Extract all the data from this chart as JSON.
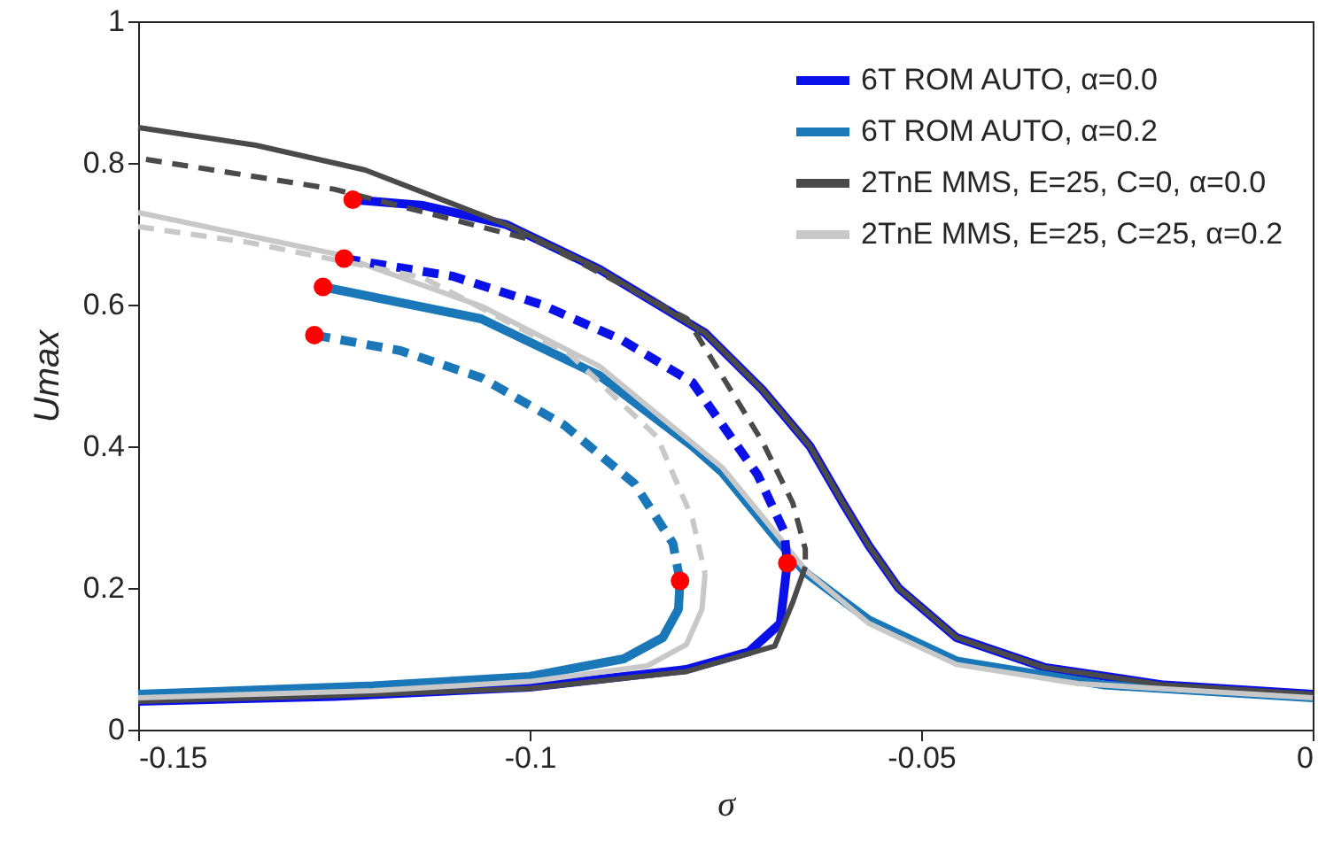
{
  "chart_data": {
    "type": "line",
    "xlabel": "σ",
    "ylabel": "Umax",
    "xlim": [
      -0.15,
      0
    ],
    "ylim": [
      0,
      1
    ],
    "xticks": [
      -0.15,
      -0.1,
      -0.05,
      0
    ],
    "yticks": [
      0,
      0.2,
      0.4,
      0.6,
      0.8,
      1
    ],
    "grid": false,
    "legend": "top right",
    "marker": "none",
    "series": [
      {
        "name": "6T ROM AUTO, α=0.0",
        "color": "#0a10e8",
        "line_style": "solid",
        "x": [
          -0.1226,
          -0.1136,
          -0.103,
          -0.0911,
          -0.0776,
          -0.0703,
          -0.0642,
          -0.06,
          -0.0567,
          -0.0529,
          -0.0455,
          -0.0343,
          -0.019,
          0
        ],
        "values": [
          0.748,
          0.74,
          0.713,
          0.65,
          0.56,
          0.48,
          0.4,
          0.32,
          0.26,
          0.2,
          0.13,
          0.088,
          0.063,
          0.05
        ]
      },
      {
        "name": "6T ROM AUTO, α=0.2",
        "color": "#1a78b8",
        "line_style": "solid",
        "x": [
          -0.1264,
          -0.1062,
          -0.0911,
          -0.0792,
          -0.0754,
          -0.068,
          -0.0648,
          -0.0567,
          -0.0455,
          -0.0266,
          0
        ],
        "values": [
          0.625,
          0.58,
          0.5,
          0.4,
          0.363,
          0.263,
          0.222,
          0.155,
          0.097,
          0.063,
          0.045
        ]
      },
      {
        "name": "2TnE MMS, E=25, C=0, α=0.0",
        "color": "#4a4a4a",
        "line_style": "solid",
        "x": [
          -0.15,
          -0.135,
          -0.121,
          -0.103,
          -0.0911,
          -0.0776,
          -0.0703,
          -0.0642,
          -0.06,
          -0.0567,
          -0.0529,
          -0.0455,
          -0.0343,
          -0.019,
          0
        ],
        "values": [
          0.85,
          0.825,
          0.79,
          0.713,
          0.65,
          0.56,
          0.48,
          0.4,
          0.32,
          0.26,
          0.2,
          0.13,
          0.088,
          0.063,
          0.05
        ]
      },
      {
        "name": "2TnE MMS, E=25, C=25, α=0.2",
        "color": "#c8c8c8",
        "line_style": "solid",
        "x": [
          -0.15,
          -0.125,
          -0.106,
          -0.0911,
          -0.0754,
          -0.068,
          -0.0648,
          -0.0567,
          -0.0455,
          -0.03,
          0
        ],
        "values": [
          0.73,
          0.672,
          0.597,
          0.513,
          0.37,
          0.27,
          0.225,
          0.15,
          0.092,
          0.065,
          0.045
        ]
      },
      {
        "color": "#0a10e8",
        "line_style": "solid",
        "x": [
          -0.15,
          -0.125,
          -0.1,
          -0.08,
          -0.072,
          -0.068,
          -0.0671
        ],
        "values": [
          0.04,
          0.047,
          0.06,
          0.085,
          0.11,
          0.15,
          0.235
        ]
      },
      {
        "color": "#0a10e8",
        "line_style": "dashed",
        "x": [
          -0.1237,
          -0.1098,
          -0.0985,
          -0.0882,
          -0.0792,
          -0.0709,
          -0.0675,
          -0.0671
        ],
        "values": [
          0.665,
          0.64,
          0.6,
          0.55,
          0.49,
          0.36,
          0.28,
          0.235
        ]
      },
      {
        "color": "#1a78b8",
        "line_style": "solid",
        "x": [
          -0.15,
          -0.12,
          -0.1,
          -0.088,
          -0.083,
          -0.081,
          -0.0808
        ],
        "values": [
          0.05,
          0.062,
          0.075,
          0.1,
          0.13,
          0.17,
          0.21
        ]
      },
      {
        "color": "#1a78b8",
        "line_style": "dashed",
        "x": [
          -0.1275,
          -0.1165,
          -0.1062,
          -0.0956,
          -0.0866,
          -0.0817,
          -0.0808
        ],
        "values": [
          0.557,
          0.535,
          0.497,
          0.43,
          0.347,
          0.263,
          0.21
        ]
      },
      {
        "color": "#4a4a4a",
        "line_style": "dashed",
        "x": [
          -0.149,
          -0.125,
          -0.0985,
          -0.0799,
          -0.0702,
          -0.0664,
          -0.0648,
          -0.0648
        ],
        "values": [
          0.805,
          0.763,
          0.688,
          0.58,
          0.405,
          0.32,
          0.255,
          0.23
        ]
      },
      {
        "color": "#4a4a4a",
        "line_style": "solid",
        "x": [
          -0.15,
          -0.125,
          -0.1,
          -0.08,
          -0.0687,
          -0.0664,
          -0.0648
        ],
        "values": [
          0.04,
          0.048,
          0.058,
          0.082,
          0.118,
          0.18,
          0.23
        ]
      },
      {
        "color": "#c8c8c8",
        "line_style": "dashed",
        "x": [
          -0.15,
          -0.136,
          -0.1136,
          -0.0949,
          -0.0837,
          -0.0792,
          -0.0776
        ],
        "values": [
          0.71,
          0.688,
          0.638,
          0.53,
          0.413,
          0.297,
          0.22
        ]
      },
      {
        "color": "#c8c8c8",
        "line_style": "solid",
        "x": [
          -0.15,
          -0.12,
          -0.1,
          -0.085,
          -0.08,
          -0.078,
          -0.0776
        ],
        "values": [
          0.045,
          0.055,
          0.068,
          0.09,
          0.12,
          0.17,
          0.22
        ]
      },
      {
        "type": "scatter",
        "color": "#ff0000",
        "marker": "circle",
        "x": [
          -0.1226,
          -0.1237,
          -0.1264,
          -0.1275,
          -0.0808,
          -0.0671
        ],
        "values": [
          0.748,
          0.665,
          0.625,
          0.557,
          0.21,
          0.235
        ]
      }
    ]
  }
}
